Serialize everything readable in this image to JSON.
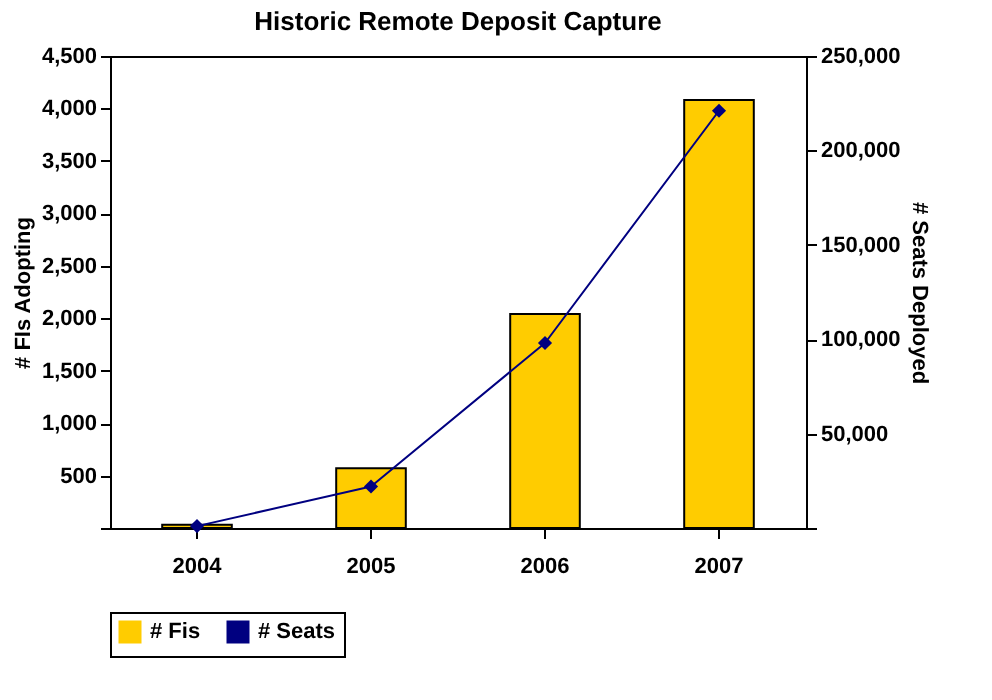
{
  "chart_data": {
    "type": "bar",
    "title": "Historic Remote Deposit Capture",
    "ylabel": "# FIs Adopting",
    "y2label": "# Seats Deployed",
    "categories": [
      "2004",
      "2005",
      "2006",
      "2007"
    ],
    "series": [
      {
        "name": "# Fis",
        "color": "#ffcc00",
        "values": [
          30,
          570,
          2040,
          4080
        ]
      },
      {
        "name": "# Seats",
        "type": "line",
        "axis": "y2",
        "color": "#000080",
        "marker": "diamond",
        "values": [
          1000,
          22000,
          98000,
          221000
        ]
      }
    ],
    "ylim": [
      0,
      4500
    ],
    "yticks": [
      {
        "value": 0,
        "label": null
      },
      500,
      {
        "value": 1000,
        "label": "1,000"
      },
      {
        "value": 1500,
        "label": "1,500"
      },
      {
        "value": 2000,
        "label": "2,000"
      },
      {
        "value": 2500,
        "label": "2,500"
      },
      {
        "value": 3000,
        "label": "3,000"
      },
      {
        "value": 3500,
        "label": "3,500"
      },
      {
        "value": 4000,
        "label": "4,000"
      },
      {
        "value": 4500,
        "label": "4,500"
      }
    ],
    "y2lim": [
      0,
      250000
    ],
    "y2ticks": [
      {
        "value": 0,
        "label": null
      },
      {
        "value": 50000,
        "label": "50,000"
      },
      {
        "value": 100000,
        "label": "100,000"
      },
      {
        "value": 150000,
        "label": "150,000"
      },
      {
        "value": 200000,
        "label": "200,000"
      },
      {
        "value": 250000,
        "label": "250,000"
      }
    ],
    "legend": "bottom",
    "grid": false
  }
}
